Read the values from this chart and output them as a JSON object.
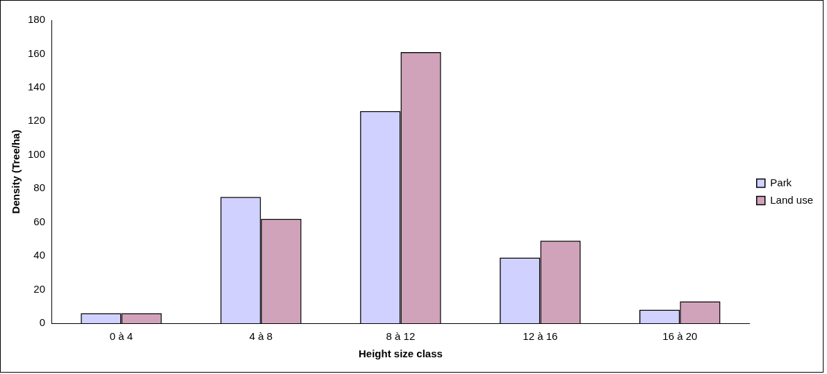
{
  "chart_data": {
    "type": "bar",
    "xlabel": "Height size class",
    "ylabel": "Density (Tree/ha)",
    "categories": [
      "0 à 4",
      "4 à 8",
      "8 à 12",
      "12 à 16",
      "16 à 20"
    ],
    "series": [
      {
        "name": "Park",
        "color": "#9999ff",
        "values": [
          6,
          75,
          126,
          39,
          8
        ]
      },
      {
        "name": "Land use",
        "color": "#993366",
        "values": [
          6,
          62,
          161,
          49,
          13
        ]
      }
    ],
    "ylim": [
      0,
      180
    ],
    "yticks": [
      0,
      20,
      40,
      60,
      80,
      100,
      120,
      140,
      160,
      180
    ],
    "grid": false,
    "legend": "right"
  }
}
